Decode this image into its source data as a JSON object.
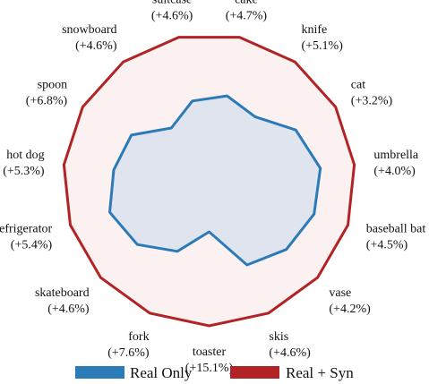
{
  "chart_data": {
    "type": "radar",
    "categories": [
      "cake",
      "knife",
      "cat",
      "umbrella",
      "baseball bat",
      "vase",
      "skis",
      "toaster",
      "fork",
      "skateboard",
      "refrigerator",
      "hot dog",
      "spoon",
      "snowboard",
      "suitcase"
    ],
    "improvements": [
      "(+4.7%)",
      "(+5.1%)",
      "(+3.2%)",
      "(+4.0%)",
      "(+4.5%)",
      "(+4.2%)",
      "(+4.6%)",
      "(+15.1%)",
      "(+7.6%)",
      "(+4.6%)",
      "(+5.4%)",
      "(+5.3%)",
      "(+6.8%)",
      "(+4.6%)",
      "(+4.6%)"
    ],
    "series": [
      {
        "name": "Real Only",
        "color": "#2b7bb9",
        "fill": "#dde3ee",
        "values": [
          0.589,
          0.535,
          0.685,
          0.766,
          0.756,
          0.712,
          0.638,
          0.356,
          0.536,
          0.662,
          0.716,
          0.657,
          0.615,
          0.44,
          0.553
        ]
      },
      {
        "name": "Real + Syn",
        "color": "#b22326",
        "fill": "#fcf1f1",
        "values": [
          1,
          1,
          1,
          1,
          1,
          1,
          1,
          1,
          1,
          1,
          1,
          1,
          1,
          1,
          1
        ]
      }
    ],
    "rlim": [
      0,
      1
    ],
    "grid": true,
    "legend": "bottom"
  },
  "legend": {
    "items": [
      {
        "label": "Real Only",
        "color": "#2b7bb9"
      },
      {
        "label": "Real + Syn",
        "color": "#b22326"
      }
    ]
  }
}
